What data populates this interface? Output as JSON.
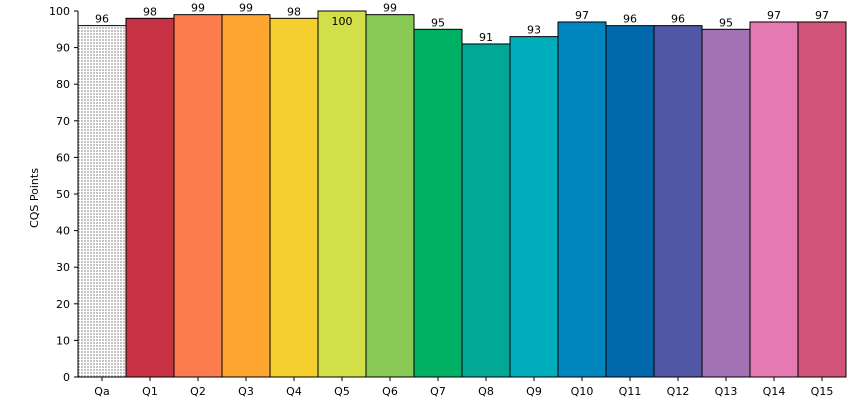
{
  "chart_data": {
    "type": "bar",
    "ylabel": "CQS Points",
    "ylim": [
      0,
      100
    ],
    "yticks": [
      0,
      10,
      20,
      30,
      40,
      50,
      60,
      70,
      80,
      90,
      100
    ],
    "grid": false,
    "legend": "none",
    "categories": [
      "Qa",
      "Q1",
      "Q2",
      "Q3",
      "Q4",
      "Q5",
      "Q6",
      "Q7",
      "Q8",
      "Q9",
      "Q10",
      "Q11",
      "Q12",
      "Q13",
      "Q14",
      "Q15"
    ],
    "values": [
      96,
      98,
      99,
      99,
      98,
      100,
      99,
      95,
      91,
      93,
      97,
      96,
      96,
      95,
      97,
      97
    ],
    "value_labels": [
      "96",
      "98",
      "99",
      "99",
      "98",
      "100",
      "99",
      "95",
      "91",
      "93",
      "97",
      "96",
      "96",
      "95",
      "97",
      "97"
    ],
    "colors": [
      "#ffffff",
      "#c83245",
      "#fd7d4f",
      "#fea631",
      "#f5cf2f",
      "#d3df49",
      "#88c956",
      "#00b064",
      "#00a895",
      "#00adbb",
      "#0087c0",
      "#0068ab",
      "#5057a5",
      "#a272b4",
      "#e57ab3",
      "#d2547b"
    ],
    "patterns": [
      "dotted",
      "solid",
      "solid",
      "solid",
      "solid",
      "solid",
      "solid",
      "solid",
      "solid",
      "solid",
      "solid",
      "solid",
      "solid",
      "solid",
      "solid",
      "solid"
    ]
  }
}
